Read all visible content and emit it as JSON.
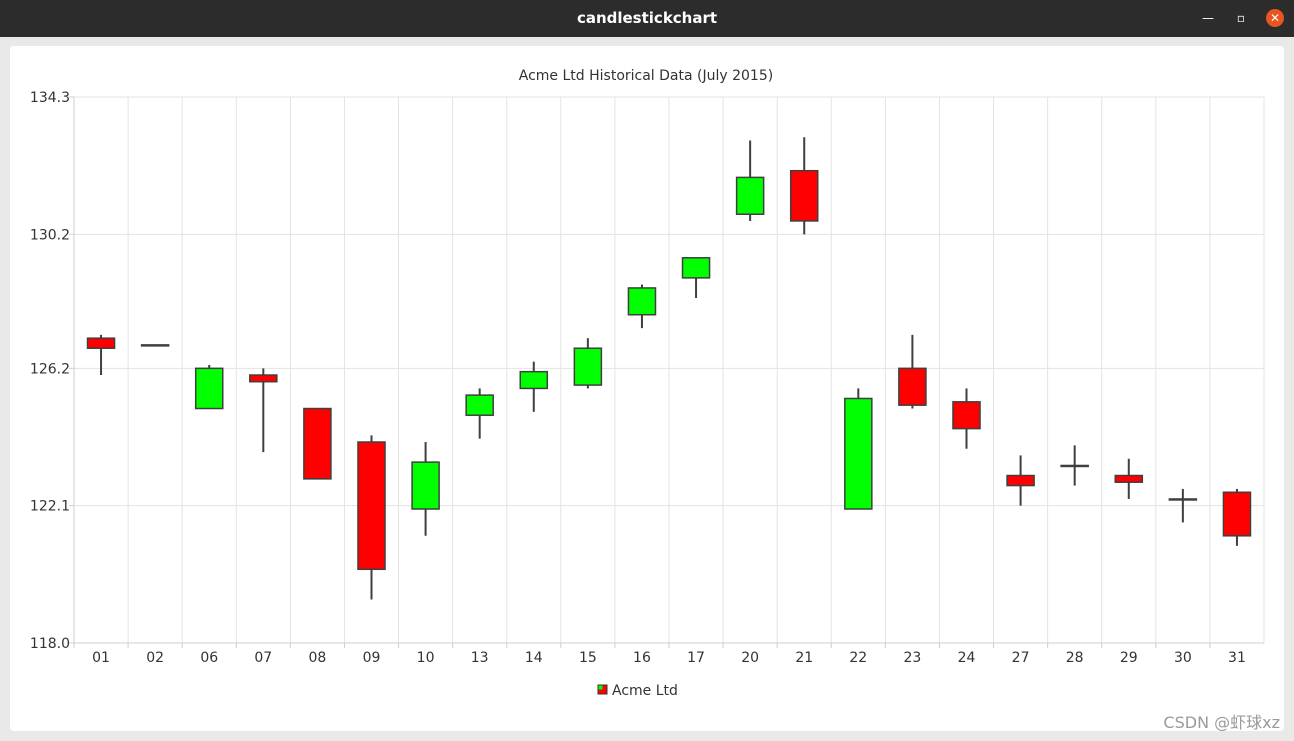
{
  "window": {
    "title": "candlestickchart",
    "min_icon": "minimize-icon",
    "max_icon": "maximize-icon",
    "close_icon": "close-icon"
  },
  "watermark": "CSDN @虾球xz",
  "chart_data": {
    "type": "candlestick",
    "title": "Acme Ltd Historical Data (July 2015)",
    "categories": [
      "01",
      "02",
      "06",
      "07",
      "08",
      "09",
      "10",
      "13",
      "14",
      "15",
      "16",
      "17",
      "20",
      "21",
      "22",
      "23",
      "24",
      "27",
      "28",
      "29",
      "30",
      "31"
    ],
    "ylim": [
      118.0,
      134.3
    ],
    "ytick_labels": [
      "134.3",
      "130.2",
      "126.2",
      "122.1",
      "118.0"
    ],
    "yticks": [
      134.3,
      130.2,
      126.2,
      122.1,
      118.0
    ],
    "grid": true,
    "legend": {
      "position": "bottom",
      "entries": [
        "Acme Ltd"
      ]
    },
    "increasing_color": "#00ff00",
    "decreasing_color": "#ff0000",
    "series": [
      {
        "name": "Acme Ltd",
        "open": [
          127.1,
          126.9,
          125.0,
          126.0,
          125.0,
          124.0,
          122.0,
          124.8,
          125.6,
          125.7,
          127.8,
          128.9,
          130.8,
          132.1,
          122.0,
          126.2,
          125.2,
          123.0,
          123.3,
          123.0,
          122.3,
          122.5
        ],
        "close": [
          126.8,
          126.9,
          126.2,
          125.8,
          122.9,
          120.2,
          123.4,
          125.4,
          126.1,
          126.8,
          128.6,
          129.5,
          131.9,
          130.6,
          125.3,
          125.1,
          124.4,
          122.7,
          123.3,
          122.8,
          122.3,
          121.2
        ],
        "high": [
          127.2,
          126.9,
          126.3,
          126.2,
          125.0,
          124.2,
          124.0,
          125.6,
          126.4,
          127.1,
          128.7,
          129.5,
          133.0,
          133.1,
          125.6,
          127.2,
          125.6,
          123.6,
          123.9,
          123.5,
          122.6,
          122.6
        ],
        "low": [
          126.0,
          126.9,
          125.0,
          123.7,
          122.9,
          119.3,
          121.2,
          124.1,
          124.9,
          125.6,
          127.4,
          128.3,
          130.6,
          130.2,
          122.0,
          125.0,
          123.8,
          122.1,
          122.7,
          122.3,
          121.6,
          120.9
        ]
      }
    ]
  }
}
